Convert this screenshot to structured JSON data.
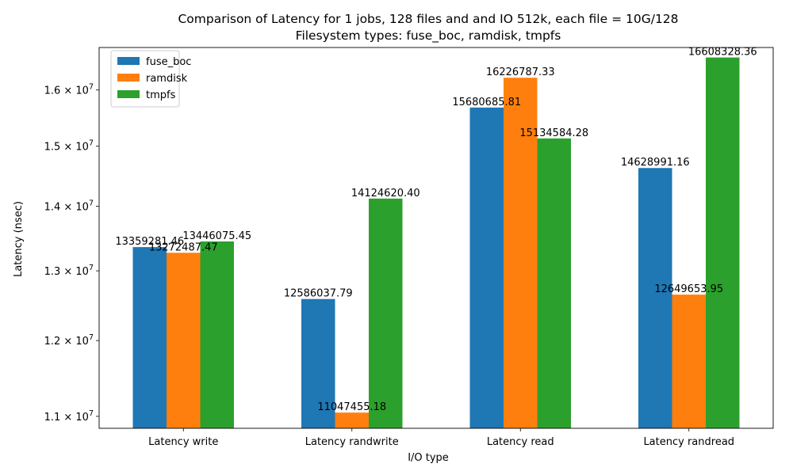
{
  "chart_data": {
    "type": "bar",
    "title_line1": "Comparison of Latency for 1 jobs, 128 files and  and IO 512k, each file = 10G/128",
    "title_line2": "Filesystem types: fuse_boc, ramdisk, tmpfs",
    "xlabel": "I/O type",
    "ylabel": "Latency (nsec)",
    "y_scale": "log",
    "ylim": [
      10850000,
      16800000
    ],
    "y_ticks": [
      {
        "value": 11000000,
        "mantissa": "1.1",
        "base": "10",
        "exp": "7"
      },
      {
        "value": 12000000,
        "mantissa": "1.2",
        "base": "10",
        "exp": "7"
      },
      {
        "value": 13000000,
        "mantissa": "1.3",
        "base": "10",
        "exp": "7"
      },
      {
        "value": 14000000,
        "mantissa": "1.4",
        "base": "10",
        "exp": "7"
      },
      {
        "value": 15000000,
        "mantissa": "1.5",
        "base": "10",
        "exp": "7"
      },
      {
        "value": 16000000,
        "mantissa": "1.6",
        "base": "10",
        "exp": "7"
      }
    ],
    "categories": [
      "Latency write",
      "Latency randwrite",
      "Latency read",
      "Latency randread"
    ],
    "series": [
      {
        "name": "fuse_boc",
        "color": "#1f77b4",
        "values": [
          13359281.46,
          12586037.79,
          15680685.81,
          14628991.16
        ],
        "labels": [
          "13359281.46",
          "12586037.79",
          "15680685.81",
          "14628991.16"
        ]
      },
      {
        "name": "ramdisk",
        "color": "#ff7f0e",
        "values": [
          13272487.47,
          11047455.18,
          16226787.33,
          12649653.95
        ],
        "labels": [
          "13272487.47",
          "11047455.18",
          "16226787.33",
          "12649653.95"
        ]
      },
      {
        "name": "tmpfs",
        "color": "#2ca02c",
        "values": [
          13446075.45,
          14124620.4,
          15134584.28,
          16608328.36
        ],
        "labels": [
          "13446075.45",
          "14124620.40",
          "15134584.28",
          "16608328.36"
        ]
      }
    ],
    "legend_position": "top-left",
    "grid": false
  }
}
